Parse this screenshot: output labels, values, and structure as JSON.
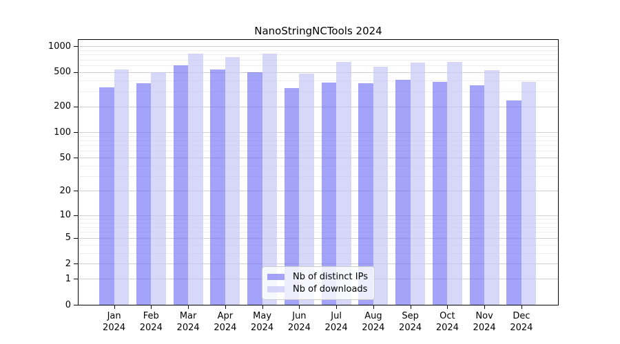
{
  "chart_data": {
    "type": "bar",
    "title": "NanoStringNCTools 2024",
    "categories": [
      "Jan",
      "Feb",
      "Mar",
      "Apr",
      "May",
      "Jun",
      "Jul",
      "Aug",
      "Sep",
      "Oct",
      "Nov",
      "Dec"
    ],
    "year_label": "2024",
    "series": [
      {
        "name": "Nb of distinct IPs",
        "color": "rgba(106,106,245,0.62)",
        "values": [
          334,
          372,
          605,
          537,
          497,
          328,
          378,
          369,
          407,
          383,
          349,
          234
        ]
      },
      {
        "name": "Nb of downloads",
        "color": "rgba(198,198,248,0.70)",
        "values": [
          535,
          500,
          815,
          748,
          819,
          485,
          655,
          578,
          643,
          662,
          528,
          387
        ]
      }
    ],
    "yaxis": {
      "scale": "log1p",
      "ticks": [
        0,
        1,
        2,
        5,
        10,
        20,
        50,
        100,
        200,
        500,
        1000
      ],
      "minor_ticks": [
        3,
        4,
        6,
        7,
        8,
        9,
        30,
        40,
        60,
        70,
        80,
        90,
        300,
        400,
        600,
        700,
        800,
        900
      ],
      "max": 1185
    },
    "legend": {
      "position": "lower center",
      "entries": [
        "Nb of distinct IPs",
        "Nb of downloads"
      ]
    },
    "grid": "on"
  }
}
